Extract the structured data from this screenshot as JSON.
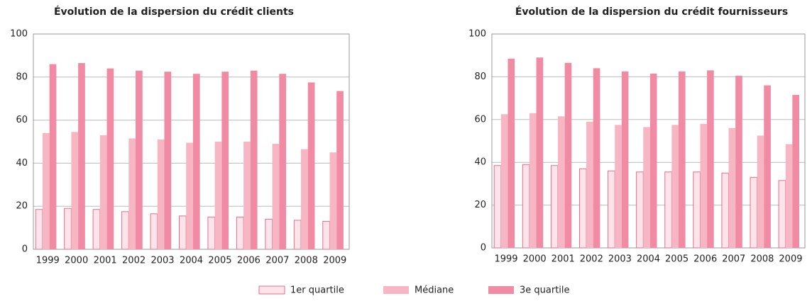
{
  "chart_data": [
    {
      "type": "bar",
      "title": "Évolution de la dispersion du crédit clients",
      "categories": [
        "1999",
        "2000",
        "2001",
        "2002",
        "2003",
        "2004",
        "2005",
        "2006",
        "2007",
        "2008",
        "2009"
      ],
      "series": [
        {
          "name": "1er quartile",
          "color": "#fde4ea",
          "values": [
            18.5,
            19,
            18.5,
            17.5,
            16.5,
            15.5,
            15,
            15,
            14,
            13.5,
            13
          ]
        },
        {
          "name": "Médiane",
          "color": "#f7b6c4",
          "values": [
            54,
            54.5,
            53,
            51.5,
            51,
            49.5,
            50,
            50,
            49,
            46.5,
            45
          ]
        },
        {
          "name": "3e quartile",
          "color": "#f08ba3",
          "values": [
            86,
            86.5,
            84,
            83,
            82.5,
            81.5,
            82.5,
            83,
            81.5,
            77.5,
            73.5
          ]
        }
      ],
      "ylim": [
        0,
        100
      ],
      "yticks": [
        0,
        20,
        40,
        60,
        80,
        100
      ],
      "grid": true
    },
    {
      "type": "bar",
      "title": "Évolution de la dispersion du crédit fournisseurs",
      "categories": [
        "1999",
        "2000",
        "2001",
        "2002",
        "2003",
        "2004",
        "2005",
        "2006",
        "2007",
        "2008",
        "2009"
      ],
      "series": [
        {
          "color": "#fde4ea",
          "values": [
            38.5,
            39,
            38.5,
            37,
            36,
            35.5,
            35.5,
            35.5,
            35,
            33,
            31.5
          ]
        },
        {
          "color": "#f7b6c4",
          "values": [
            62.5,
            63,
            61.5,
            59,
            57.5,
            56.5,
            57.5,
            58,
            56,
            52.5,
            48.5
          ]
        },
        {
          "color": "#f08ba3",
          "values": [
            88.5,
            89,
            86.5,
            84,
            82.5,
            81.5,
            82.5,
            83,
            80.5,
            76,
            71.5
          ]
        }
      ],
      "ylim": [
        0,
        100
      ],
      "yticks": [
        0,
        20,
        40,
        60,
        80,
        100
      ],
      "grid": true
    }
  ]
}
